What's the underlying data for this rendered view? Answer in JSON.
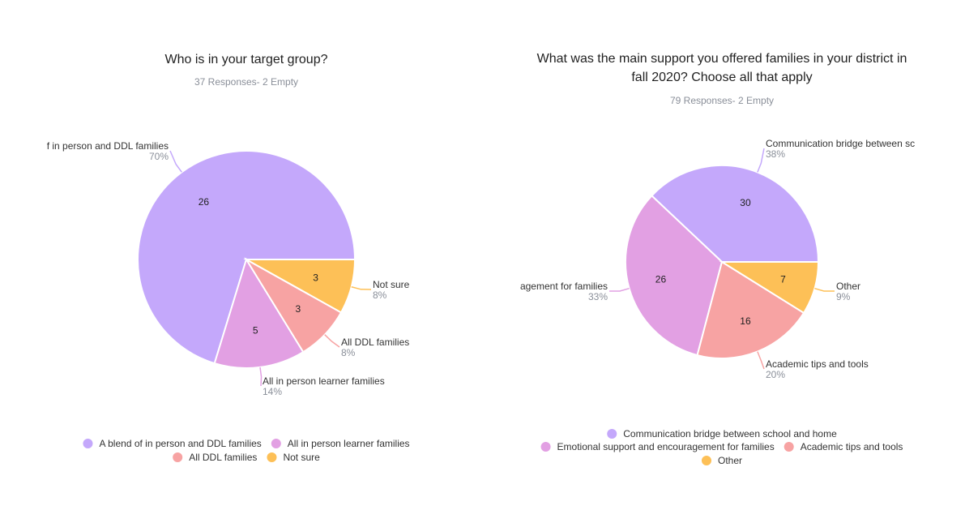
{
  "chart_data": [
    {
      "type": "pie",
      "title": "Who is in your target group?",
      "subtitle": "37 Responses- 2 Empty",
      "slices": [
        {
          "label": "A blend of in person and DDL families",
          "callout": "f in person and DDL families",
          "value": 26,
          "percent": "70%",
          "color": "#c4a8fb"
        },
        {
          "label": "All in person learner families",
          "callout": "All in person learner families",
          "value": 5,
          "percent": "14%",
          "color": "#e2a0e3"
        },
        {
          "label": "All DDL families",
          "callout": "All DDL families",
          "value": 3,
          "percent": "8%",
          "color": "#f7a3a3"
        },
        {
          "label": "Not sure",
          "callout": "Not sure",
          "value": 3,
          "percent": "8%",
          "color": "#fdc057"
        }
      ],
      "legend_rows": [
        [
          0,
          1
        ],
        [
          2,
          3
        ]
      ]
    },
    {
      "type": "pie",
      "title": "What was the main support you offered families in your district in fall 2020? Choose all that apply",
      "title_lines": [
        "What was the main support you offered families in your district in",
        "fall 2020? Choose all that apply"
      ],
      "subtitle": "79 Responses- 2 Empty",
      "slices": [
        {
          "label": "Communication bridge between school and home",
          "callout": "Communication bridge between sc",
          "value": 30,
          "percent": "38%",
          "color": "#c4a8fb"
        },
        {
          "label": "Emotional support and encouragement for families",
          "callout": "agement for families",
          "value": 26,
          "percent": "33%",
          "color": "#e2a0e3"
        },
        {
          "label": "Academic tips and tools",
          "callout": "Academic tips and tools",
          "value": 16,
          "percent": "20%",
          "color": "#f7a3a3"
        },
        {
          "label": "Other",
          "callout": "Other",
          "value": 7,
          "percent": "9%",
          "color": "#fdc057"
        }
      ],
      "legend_rows": [
        [
          0
        ],
        [
          1,
          2
        ],
        [
          3
        ]
      ]
    }
  ]
}
